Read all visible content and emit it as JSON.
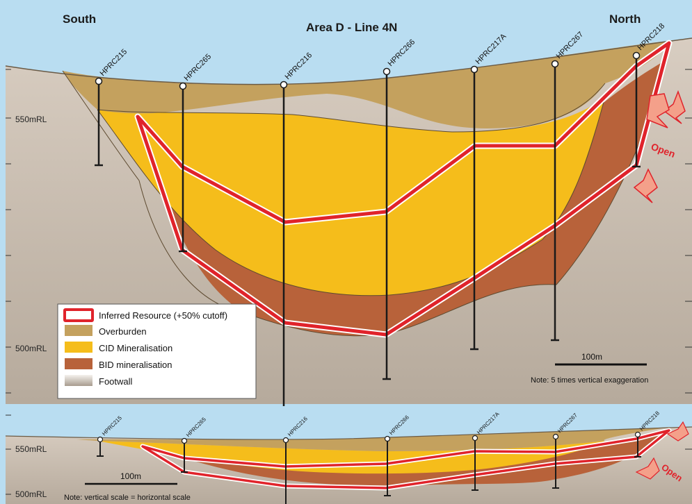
{
  "title": "Area D - Line 4N",
  "directions": {
    "south": "South",
    "north": "North"
  },
  "elevations": {
    "upper_550": "550mRL",
    "upper_500": "500mRL",
    "lower_550": "550mRL",
    "lower_500": "500mRL"
  },
  "drillholes": [
    "HPRC215",
    "HPRC265",
    "HPRC216",
    "HPRC266",
    "HPRC217A",
    "HPRC267",
    "HPRC218"
  ],
  "open_label": "Open",
  "legend": {
    "items": [
      {
        "label": "Inferred Resource (+50% cutoff)",
        "swatch": "resource"
      },
      {
        "label": "Overburden",
        "swatch": "overburden"
      },
      {
        "label": "CID Mineralisation",
        "swatch": "cid"
      },
      {
        "label": "BID mineralisation",
        "swatch": "bid"
      },
      {
        "label": "Footwall",
        "swatch": "footwall"
      }
    ]
  },
  "upper_scale": {
    "label": "100m",
    "note": "Note: 5 times vertical exaggeration"
  },
  "lower_scale": {
    "label": "100m",
    "note": "Note: vertical scale = horizontal scale"
  },
  "colors": {
    "sky": "#b9ddf1",
    "overburden": "#c4a15e",
    "cid": "#f5bd1b",
    "bid": "#b8623a",
    "footwall": "#c9bdb0",
    "resource": "#e0232b",
    "open": "#e0232b"
  }
}
